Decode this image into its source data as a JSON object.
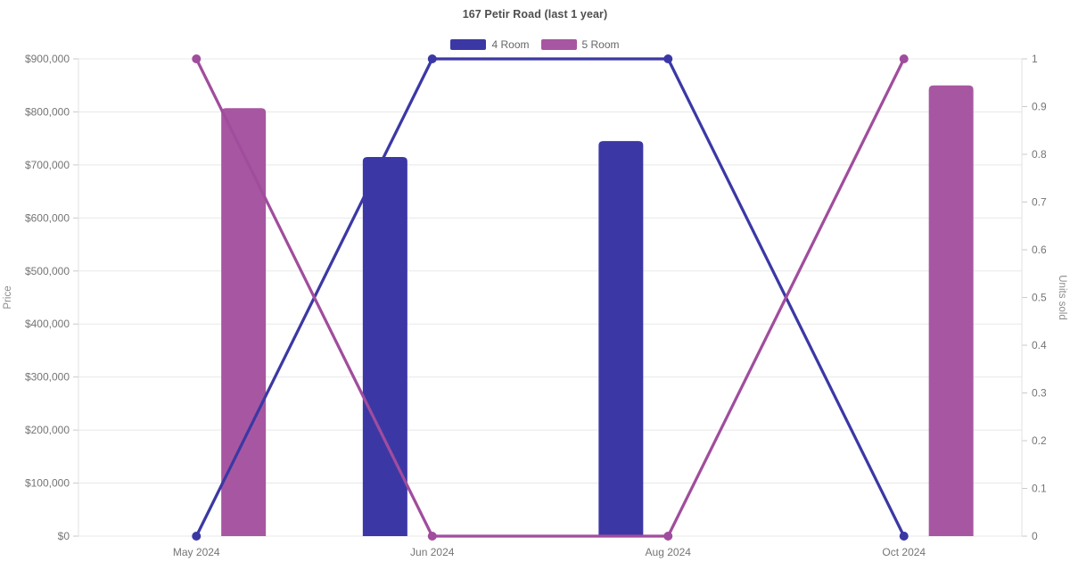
{
  "title": "167 Petir Road (last 1 year)",
  "legend": [
    {
      "label": "4 Room",
      "color": "#3b38a5"
    },
    {
      "label": "5 Room",
      "color": "#a757a1"
    }
  ],
  "chart_data": {
    "type": "combo-bar-line",
    "title": "167 Petir Road (last 1 year)",
    "legend_position": "top",
    "grid": "horizontal-only",
    "background": "#ffffff",
    "categories": [
      "May 2024",
      "Jun 2024",
      "Aug 2024",
      "Oct 2024"
    ],
    "series": [
      {
        "name": "4 Room",
        "color": "#3b38a5",
        "line_color": "#3b38a5",
        "bar_values_price": [
          null,
          715000,
          745000,
          null
        ],
        "line_values_units_sold": [
          0,
          1,
          1,
          0
        ]
      },
      {
        "name": "5 Room",
        "color": "#a757a1",
        "line_color": "#a04d9d",
        "bar_values_price": [
          807000,
          null,
          null,
          850000
        ],
        "line_values_units_sold": [
          1,
          0,
          0,
          1
        ]
      }
    ],
    "left_axis": {
      "title": "Price",
      "min": 0,
      "max": 900000,
      "step": 100000,
      "tick_labels": [
        "$0",
        "$100,000",
        "$200,000",
        "$300,000",
        "$400,000",
        "$500,000",
        "$600,000",
        "$700,000",
        "$800,000",
        "$900,000"
      ]
    },
    "right_axis": {
      "title": "Units sold",
      "min": 0,
      "max": 1,
      "step": 0.1,
      "tick_labels": [
        "0",
        "0.1",
        "0.2",
        "0.3",
        "0.4",
        "0.5",
        "0.6",
        "0.7",
        "0.8",
        "0.9",
        "1"
      ]
    },
    "colors": {
      "gridline": "#e8e8e8",
      "axis_border": "#e2e2e2",
      "tick_mark": "#c9c9c9",
      "tick_text": "#757575",
      "axis_title_text": "#8c8c8c",
      "title_text": "#4e4e4e"
    }
  }
}
